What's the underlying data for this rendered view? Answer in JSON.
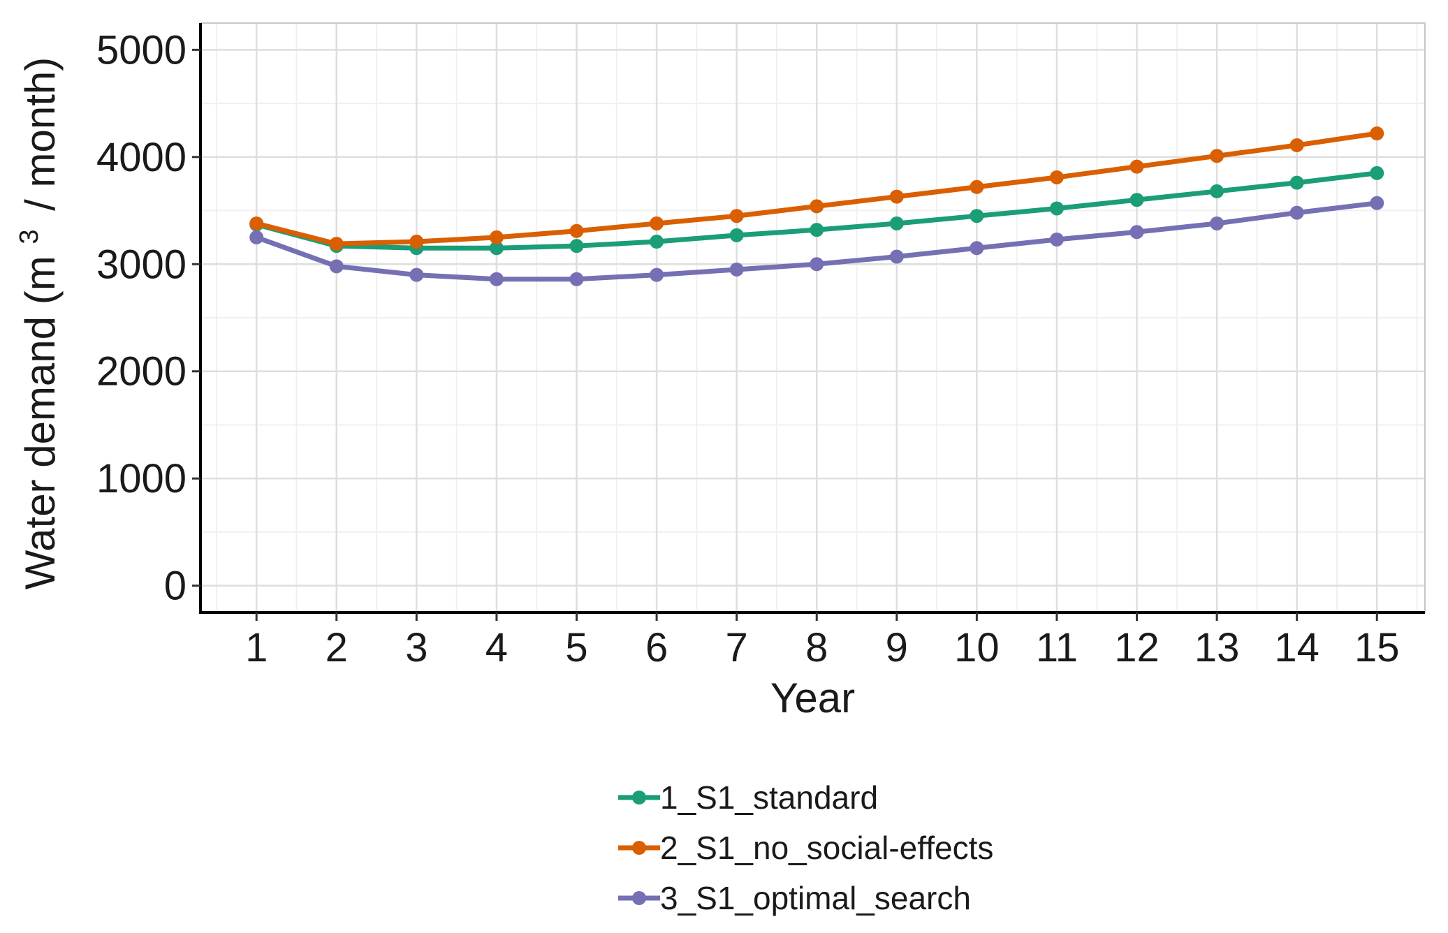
{
  "chart_data": {
    "type": "line",
    "title": "",
    "xlabel": "Year",
    "ylabel": "Water demand",
    "ylabel_unit_open": "(m",
    "ylabel_unit_sup": "3",
    "ylabel_unit_close": "/ month)",
    "x": [
      1,
      2,
      3,
      4,
      5,
      6,
      7,
      8,
      9,
      10,
      11,
      12,
      13,
      14,
      15
    ],
    "xlim": [
      0.3,
      15.6
    ],
    "ylim": [
      -250,
      5250
    ],
    "yticks": [
      0,
      1000,
      2000,
      3000,
      4000,
      5000
    ],
    "grid": true,
    "legend_position": "bottom",
    "series": [
      {
        "name": "1_S1_standard",
        "color": "#1b9e77",
        "values": [
          3370,
          3170,
          3150,
          3150,
          3170,
          3210,
          3270,
          3320,
          3380,
          3450,
          3520,
          3600,
          3680,
          3760,
          3850
        ]
      },
      {
        "name": "2_S1_no_social-effects",
        "color": "#d95f02",
        "values": [
          3380,
          3190,
          3210,
          3250,
          3310,
          3380,
          3450,
          3540,
          3630,
          3720,
          3810,
          3910,
          4010,
          4110,
          4220
        ]
      },
      {
        "name": "3_S1_optimal_search",
        "color": "#7570b3",
        "values": [
          3250,
          2980,
          2900,
          2860,
          2860,
          2900,
          2950,
          3000,
          3070,
          3150,
          3230,
          3300,
          3380,
          3480,
          3570
        ]
      }
    ]
  }
}
